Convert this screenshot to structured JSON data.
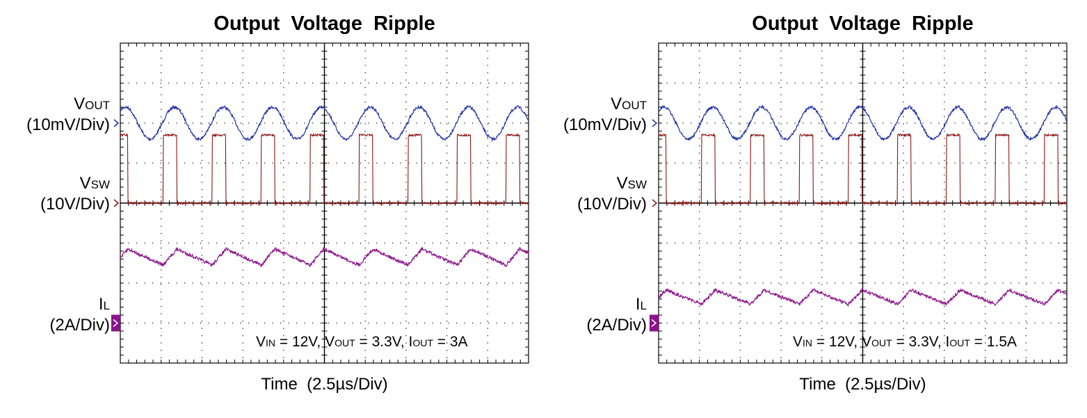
{
  "colors": {
    "vout": "#1f2fa8",
    "vsw": "#8b1414",
    "il": "#8b138b",
    "grid": "#000000"
  },
  "chart_data": [
    {
      "type": "line",
      "title": "Output  Voltage  Ripple",
      "xlabel": "Time  (2.5µs/Div)",
      "x_divisions": 10,
      "y_divisions": 8,
      "x_unit": "µs",
      "x_per_div": 2.5,
      "channels": [
        {
          "id": "vout",
          "name_main": "V",
          "name_sub": "OUT",
          "scale": "(10mV/Div)",
          "marker": "›"
        },
        {
          "id": "vsw",
          "name_main": "V",
          "name_sub": "SW",
          "scale": "(10V/Div)",
          "marker": "›"
        },
        {
          "id": "il",
          "name_main": "I",
          "name_sub": "L",
          "scale": "(2A/Div)",
          "marker": "›"
        }
      ],
      "conditions": [
        {
          "main": "V",
          "sub": "IN",
          "rest": " = 12V, "
        },
        {
          "main": "V",
          "sub": "OUT",
          "rest": " = 3.3V, "
        },
        {
          "main": "I",
          "sub": "OUT",
          "rest": " = 3A"
        }
      ],
      "waveforms": {
        "switching_period_div": 1.2,
        "vout_center_div": 2.0,
        "vout_pp_div": 0.8,
        "vsw_low_div": 4.0,
        "vsw_high_div": 2.3,
        "vsw_duty": 0.28,
        "il_center_div": 5.35,
        "il_pp_div": 0.4
      }
    },
    {
      "type": "line",
      "title": "Output  Voltage  Ripple",
      "xlabel": "Time  (2.5µs/Div)",
      "x_divisions": 10,
      "y_divisions": 8,
      "x_unit": "µs",
      "x_per_div": 2.5,
      "channels": [
        {
          "id": "vout",
          "name_main": "V",
          "name_sub": "OUT",
          "scale": "(10mV/Div)",
          "marker": "›"
        },
        {
          "id": "vsw",
          "name_main": "V",
          "name_sub": "SW",
          "scale": "(10V/Div)",
          "marker": "›"
        },
        {
          "id": "il",
          "name_main": "I",
          "name_sub": "L",
          "scale": "(2A/Div)",
          "marker": "›"
        }
      ],
      "conditions": [
        {
          "main": "V",
          "sub": "IN",
          "rest": " = 12V, "
        },
        {
          "main": "V",
          "sub": "OUT",
          "rest": " = 3.3V, "
        },
        {
          "main": "I",
          "sub": "OUT",
          "rest": " = 1.5A"
        }
      ],
      "waveforms": {
        "switching_period_div": 1.2,
        "vout_center_div": 2.0,
        "vout_pp_div": 0.8,
        "vsw_low_div": 4.0,
        "vsw_high_div": 2.3,
        "vsw_duty": 0.28,
        "il_center_div": 6.35,
        "il_pp_div": 0.35
      }
    }
  ]
}
